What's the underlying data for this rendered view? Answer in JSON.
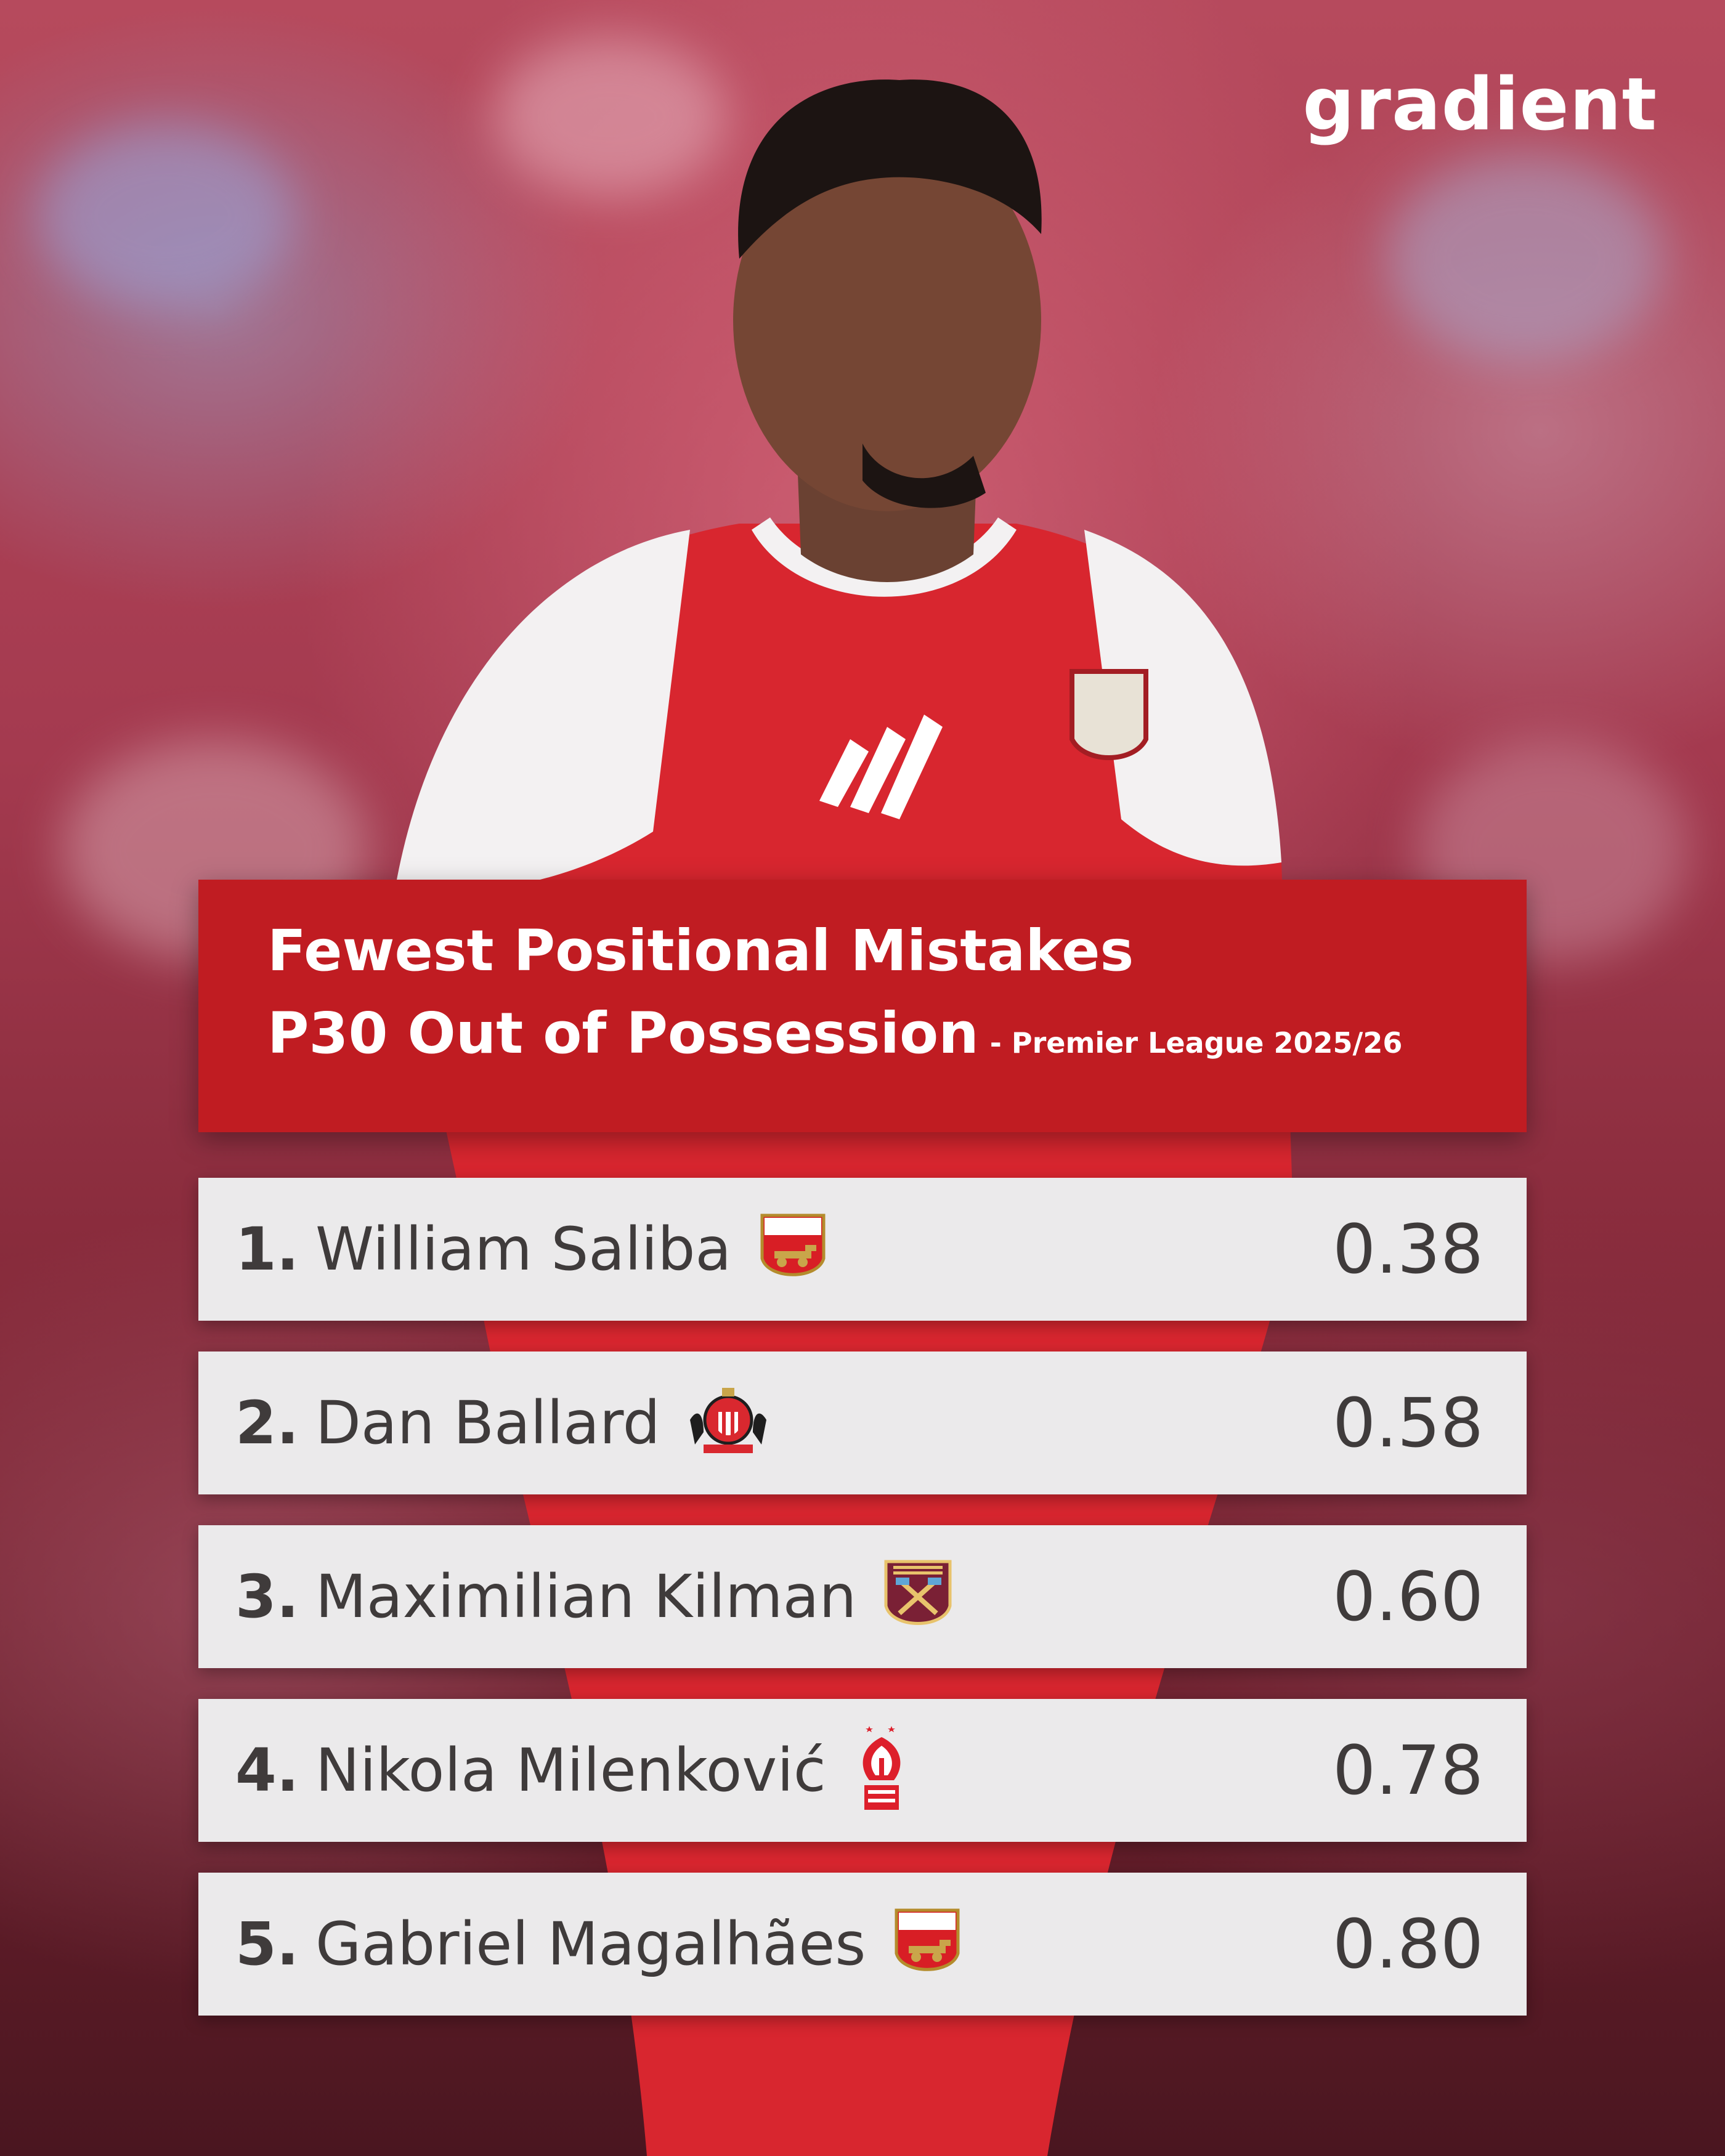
{
  "brand": {
    "name": "gradient"
  },
  "header": {
    "line1": "Fewest Positional Mistakes",
    "line2": "P30 Out of Possession",
    "subtitle": "- Premier League 2025/26"
  },
  "colors": {
    "title_bg": "#c01c22",
    "row_bg": "#ebeaeb",
    "text_dark": "#3f3b3b"
  },
  "ranking": [
    {
      "rank": "1.",
      "player": "William Saliba",
      "value": "0.38",
      "crest": "arsenal-crest-icon"
    },
    {
      "rank": "2.",
      "player": "Dan Ballard",
      "value": "0.58",
      "crest": "sunderland-crest-icon"
    },
    {
      "rank": "3.",
      "player": "Maximilian Kilman",
      "value": "0.60",
      "crest": "west-ham-crest-icon"
    },
    {
      "rank": "4.",
      "player": "Nikola Milenković",
      "value": "0.78",
      "crest": "nottingham-forest-crest-icon"
    },
    {
      "rank": "5.",
      "player": "Gabriel Magalhães",
      "value": "0.80",
      "crest": "arsenal-crest-icon"
    }
  ]
}
